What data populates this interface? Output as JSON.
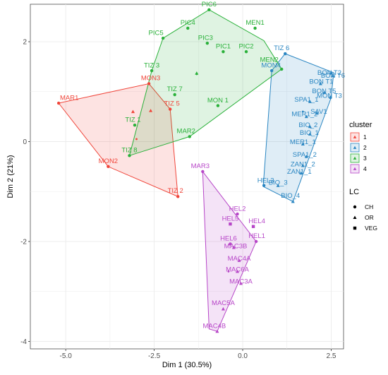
{
  "chart_data": {
    "type": "scatter",
    "xlabel": "Dim 1 (30.5%)",
    "ylabel": "Dim 2 (21%)",
    "xlim": [
      -6.0,
      2.85
    ],
    "ylim": [
      -4.15,
      2.75
    ],
    "xticks": [
      -5.0,
      -2.5,
      0.0,
      2.5
    ],
    "xtick_labels": [
      "-5.0",
      "-2.5",
      "0.0",
      "2.5"
    ],
    "yticks": [
      -4,
      -2,
      0,
      2
    ],
    "ytick_labels": [
      "-4",
      "-2",
      "0",
      "2"
    ],
    "grid": true,
    "legend_placement": "right",
    "clusters": [
      {
        "id": "1",
        "label": "1",
        "color": "#f0453a",
        "hull": [
          [
            -5.2,
            0.77
          ],
          [
            -2.65,
            1.16
          ],
          [
            -2.05,
            0.65
          ],
          [
            -1.83,
            -1.1
          ],
          [
            -3.8,
            -0.5
          ]
        ],
        "centroid": [
          -3.0,
          0.05
        ]
      },
      {
        "id": "2",
        "label": "2",
        "color": "#2a86c2",
        "hull": [
          [
            1.2,
            1.76
          ],
          [
            2.57,
            1.38
          ],
          [
            2.5,
            0.88
          ],
          [
            1.42,
            -1.2
          ],
          [
            0.58,
            -0.9
          ],
          [
            0.82,
            1.42
          ]
        ],
        "centroid": [
          1.7,
          0.6
        ]
      },
      {
        "id": "3",
        "label": "3",
        "color": "#2ab13a",
        "hull": [
          [
            -0.95,
            2.64
          ],
          [
            0.6,
            2.02
          ],
          [
            1.1,
            1.45
          ],
          [
            -1.5,
            0.1
          ],
          [
            -3.2,
            -0.28
          ],
          [
            -2.57,
            1.42
          ],
          [
            -2.25,
            2.07
          ]
        ],
        "centroid": [
          -1.3,
          1.35
        ]
      },
      {
        "id": "4",
        "label": "4",
        "color": "#b746c8",
        "hull": [
          [
            -1.13,
            -0.6
          ],
          [
            0.38,
            -2.0
          ],
          [
            -0.72,
            -3.8
          ],
          [
            -0.95,
            -3.75
          ]
        ],
        "centroid": [
          -0.4,
          -2.6
        ]
      }
    ],
    "points": [
      {
        "label": "MAR1",
        "x": -5.2,
        "y": 0.77,
        "cluster": "1",
        "lc": "CH",
        "lx": -4.9,
        "ly": 0.88
      },
      {
        "label": "MON3",
        "x": -2.65,
        "y": 1.16,
        "cluster": "1",
        "lc": "CH",
        "lx": -2.6,
        "ly": 1.27
      },
      {
        "label": "TIZ 5",
        "x": -2.05,
        "y": 0.65,
        "cluster": "1",
        "lc": "CH",
        "lx": -2.0,
        "ly": 0.76
      },
      {
        "label": "MON2",
        "x": -3.8,
        "y": -0.5,
        "cluster": "1",
        "lc": "CH",
        "lx": -3.8,
        "ly": -0.39
      },
      {
        "label": "TIZ 2",
        "x": -1.83,
        "y": -1.1,
        "cluster": "1",
        "lc": "CH",
        "lx": -1.9,
        "ly": -0.98
      },
      {
        "label": "",
        "x": -3.1,
        "y": 0.6,
        "cluster": "1",
        "lc": "OR",
        "lx": -3.1,
        "ly": 0.6
      },
      {
        "label": "",
        "x": -2.6,
        "y": 0.62,
        "cluster": "1",
        "lc": "OR",
        "lx": -2.6,
        "ly": 0.62
      },
      {
        "label": "TIZ 6",
        "x": 1.2,
        "y": 1.76,
        "cluster": "2",
        "lc": "CH",
        "lx": 1.1,
        "ly": 1.87
      },
      {
        "label": "MON4",
        "x": 0.82,
        "y": 1.42,
        "cluster": "2",
        "lc": "CH",
        "lx": 0.8,
        "ly": 1.53
      },
      {
        "label": "BON T2",
        "x": 2.5,
        "y": 1.38,
        "cluster": "2",
        "lc": "OR",
        "lx": 2.45,
        "ly": 1.38
      },
      {
        "label": "BON T6",
        "x": 2.55,
        "y": 1.32,
        "cluster": "2",
        "lc": "OR",
        "lx": 2.55,
        "ly": 1.32
      },
      {
        "label": "BON T1",
        "x": 2.2,
        "y": 1.16,
        "cluster": "2",
        "lc": "OR",
        "lx": 2.22,
        "ly": 1.2
      },
      {
        "label": "BON T5",
        "x": 2.3,
        "y": 0.98,
        "cluster": "2",
        "lc": "OR",
        "lx": 2.3,
        "ly": 1.01
      },
      {
        "label": "MON T3",
        "x": 2.48,
        "y": 0.88,
        "cluster": "2",
        "lc": "CH",
        "lx": 2.45,
        "ly": 0.92
      },
      {
        "label": "SPA1_1",
        "x": 1.9,
        "y": 0.8,
        "cluster": "2",
        "lc": "OR",
        "lx": 1.8,
        "ly": 0.84
      },
      {
        "label": "SAV1",
        "x": 2.1,
        "y": 0.57,
        "cluster": "2",
        "lc": "OR",
        "lx": 2.15,
        "ly": 0.6
      },
      {
        "label": "MER1_2",
        "x": 1.8,
        "y": 0.5,
        "cluster": "2",
        "lc": "OR",
        "lx": 1.75,
        "ly": 0.55
      },
      {
        "label": "BIO_2",
        "x": 1.9,
        "y": 0.3,
        "cluster": "2",
        "lc": "OR",
        "lx": 1.85,
        "ly": 0.33
      },
      {
        "label": "BIO_1",
        "x": 1.9,
        "y": 0.15,
        "cluster": "2",
        "lc": "OR",
        "lx": 1.88,
        "ly": 0.18
      },
      {
        "label": "MER1_1",
        "x": 1.7,
        "y": -0.05,
        "cluster": "2",
        "lc": "OR",
        "lx": 1.7,
        "ly": -0.01
      },
      {
        "label": "SPA1_2",
        "x": 1.8,
        "y": -0.3,
        "cluster": "2",
        "lc": "OR",
        "lx": 1.75,
        "ly": -0.26
      },
      {
        "label": "ZAN1_2",
        "x": 1.7,
        "y": -0.48,
        "cluster": "2",
        "lc": "OR",
        "lx": 1.7,
        "ly": -0.45
      },
      {
        "label": "ZAN1_1",
        "x": 1.65,
        "y": -0.63,
        "cluster": "2",
        "lc": "OR",
        "lx": 1.6,
        "ly": -0.6
      },
      {
        "label": "HEL3",
        "x": 0.6,
        "y": -0.88,
        "cluster": "2",
        "lc": "CH",
        "lx": 0.65,
        "ly": -0.78
      },
      {
        "label": "BIO_3",
        "x": 1.0,
        "y": -0.88,
        "cluster": "2",
        "lc": "OR",
        "lx": 1.0,
        "ly": -0.82
      },
      {
        "label": "BIO_4",
        "x": 1.42,
        "y": -1.2,
        "cluster": "2",
        "lc": "OR",
        "lx": 1.35,
        "ly": -1.08
      },
      {
        "label": "PIC6",
        "x": -0.95,
        "y": 2.64,
        "cluster": "3",
        "lc": "CH",
        "lx": -0.95,
        "ly": 2.75
      },
      {
        "label": "PIC4",
        "x": -1.55,
        "y": 2.27,
        "cluster": "3",
        "lc": "CH",
        "lx": -1.55,
        "ly": 2.38
      },
      {
        "label": "MEN1",
        "x": 0.35,
        "y": 2.27,
        "cluster": "3",
        "lc": "CH",
        "lx": 0.35,
        "ly": 2.38
      },
      {
        "label": "PIC5",
        "x": -2.25,
        "y": 2.07,
        "cluster": "3",
        "lc": "CH",
        "lx": -2.45,
        "ly": 2.18
      },
      {
        "label": "PIC3",
        "x": -1.0,
        "y": 1.97,
        "cluster": "3",
        "lc": "CH",
        "lx": -1.05,
        "ly": 2.08
      },
      {
        "label": "PIC1",
        "x": -0.55,
        "y": 1.8,
        "cluster": "3",
        "lc": "CH",
        "lx": -0.55,
        "ly": 1.91
      },
      {
        "label": "PIC2",
        "x": 0.1,
        "y": 1.8,
        "cluster": "3",
        "lc": "CH",
        "lx": 0.1,
        "ly": 1.91
      },
      {
        "label": "MEN2",
        "x": 1.1,
        "y": 1.45,
        "cluster": "3",
        "lc": "CH",
        "lx": 0.75,
        "ly": 1.64
      },
      {
        "label": "TIZ 3",
        "x": -2.57,
        "y": 1.42,
        "cluster": "3",
        "lc": "CH",
        "lx": -2.57,
        "ly": 1.53
      },
      {
        "label": "TIZ 7",
        "x": -1.92,
        "y": 0.94,
        "cluster": "3",
        "lc": "CH",
        "lx": -1.92,
        "ly": 1.05
      },
      {
        "label": "MON 1",
        "x": -0.7,
        "y": 0.72,
        "cluster": "3",
        "lc": "CH",
        "lx": -0.7,
        "ly": 0.83
      },
      {
        "label": "TIZ 1",
        "x": -3.05,
        "y": 0.33,
        "cluster": "3",
        "lc": "CH",
        "lx": -3.1,
        "ly": 0.44
      },
      {
        "label": "MAR2",
        "x": -1.5,
        "y": 0.1,
        "cluster": "3",
        "lc": "CH",
        "lx": -1.6,
        "ly": 0.21
      },
      {
        "label": "TIZ 8",
        "x": -3.2,
        "y": -0.28,
        "cluster": "3",
        "lc": "CH",
        "lx": -3.2,
        "ly": -0.17
      },
      {
        "label": "",
        "x": -1.3,
        "y": 1.37,
        "cluster": "3",
        "lc": "OR",
        "lx": -1.3,
        "ly": 1.37
      },
      {
        "label": "MAR3",
        "x": -1.13,
        "y": -0.6,
        "cluster": "4",
        "lc": "CH",
        "lx": -1.2,
        "ly": -0.49
      },
      {
        "label": "HEL2",
        "x": -0.15,
        "y": -1.45,
        "cluster": "4",
        "lc": "CH",
        "lx": -0.15,
        "ly": -1.34
      },
      {
        "label": "HEL5",
        "x": -0.35,
        "y": -1.65,
        "cluster": "4",
        "lc": "VEG",
        "lx": -0.35,
        "ly": -1.54
      },
      {
        "label": "HEL4",
        "x": 0.3,
        "y": -1.7,
        "cluster": "4",
        "lc": "VEG",
        "lx": 0.4,
        "ly": -1.59
      },
      {
        "label": "HEL1",
        "x": 0.38,
        "y": -2.0,
        "cluster": "4",
        "lc": "CH",
        "lx": 0.4,
        "ly": -1.89
      },
      {
        "label": "HEL6",
        "x": -0.35,
        "y": -2.05,
        "cluster": "4",
        "lc": "CH",
        "lx": -0.4,
        "ly": -1.94
      },
      {
        "label": "MAC3B",
        "x": -0.25,
        "y": -2.12,
        "cluster": "4",
        "lc": "OR",
        "lx": -0.2,
        "ly": -2.09
      },
      {
        "label": "MAC4A",
        "x": -0.1,
        "y": -2.38,
        "cluster": "4",
        "lc": "OR",
        "lx": -0.1,
        "ly": -2.34
      },
      {
        "label": "MAC6A",
        "x": -0.15,
        "y": -2.6,
        "cluster": "4",
        "lc": "OR",
        "lx": -0.15,
        "ly": -2.56
      },
      {
        "label": "MAC3A",
        "x": -0.05,
        "y": -2.84,
        "cluster": "4",
        "lc": "OR",
        "lx": -0.05,
        "ly": -2.8
      },
      {
        "label": "MAC5A",
        "x": -0.55,
        "y": -3.35,
        "cluster": "4",
        "lc": "OR",
        "lx": -0.55,
        "ly": -3.23
      },
      {
        "label": "MAC4B",
        "x": -0.72,
        "y": -3.8,
        "cluster": "4",
        "lc": "OR",
        "lx": -0.8,
        "ly": -3.69
      }
    ],
    "legend": {
      "cluster_title": "cluster",
      "cluster_items": [
        "1",
        "2",
        "3",
        "4"
      ],
      "lc_title": "LC",
      "lc_items": [
        "CH",
        "OR",
        "VEG"
      ]
    }
  }
}
